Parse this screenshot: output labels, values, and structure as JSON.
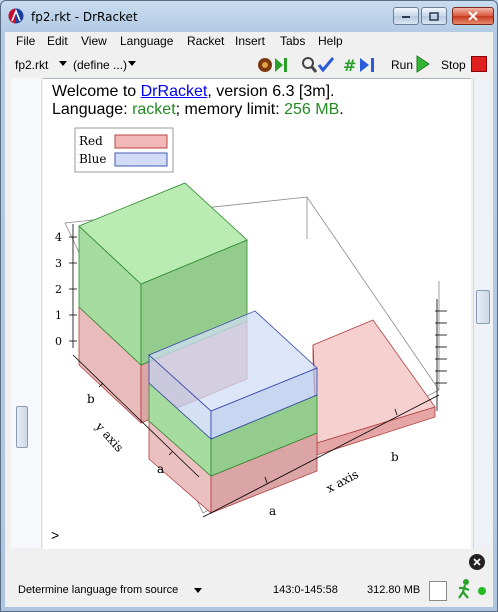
{
  "window": {
    "title": "fp2.rkt - DrRacket"
  },
  "menu": [
    "File",
    "Edit",
    "View",
    "Language",
    "Racket",
    "Insert",
    "Tabs",
    "Help"
  ],
  "toolbar": {
    "file_label": "fp2.rkt",
    "define_label": "(define ...)",
    "run_label": "Run",
    "stop_label": "Stop"
  },
  "repl": {
    "welcome_prefix": "Welcome to ",
    "welcome_link": "DrRacket",
    "welcome_suffix": ", version 6.3 [3m].",
    "lang_prefix": "Language: ",
    "lang_name": "racket",
    "lang_mid": "; memory limit: ",
    "mem_limit": "256 MB",
    "lang_end": ".",
    "prompt": ">"
  },
  "chart_data": {
    "type": "bar",
    "categories": [
      "a",
      "b"
    ],
    "series": [
      {
        "name": "Red",
        "values": [
          [
            1.3,
            1.3
          ],
          [
            1.3,
            0.0
          ]
        ],
        "color": "#f2b8b8"
      },
      {
        "name": "Blue",
        "values": [
          [
            1.3,
            0
          ],
          [
            0,
            0
          ]
        ],
        "color": "#d2dcf6"
      }
    ],
    "stacked_green": {
      "values": [
        [
          2.0,
          0
        ],
        [
          3.1,
          0
        ]
      ],
      "color": "#a8e0a0"
    },
    "xlabel": "x axis",
    "ylabel": "y axis",
    "x_ticks": [
      "a",
      "b"
    ],
    "y_ticks": [
      "a",
      "b"
    ],
    "z_ticks": [
      "0",
      "1",
      "2",
      "3",
      "4"
    ],
    "legend": {
      "placement": "top-left"
    }
  },
  "status": {
    "language": "Determine language from source",
    "position": "143:0-145:58",
    "memory": "312.80 MB"
  },
  "colors": {
    "accent_green": "#228b22",
    "link": "#0000ee"
  }
}
